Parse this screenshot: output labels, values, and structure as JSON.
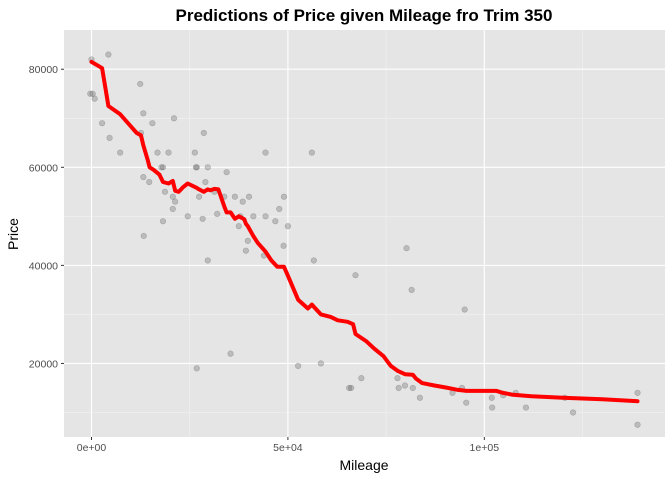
{
  "chart_data": {
    "type": "scatter",
    "title": "Predictions of Price given Mileage fro Trim 350",
    "xlabel": "Mileage",
    "ylabel": "Price",
    "xlim": [
      -7000,
      146000
    ],
    "ylim": [
      5000,
      88000
    ],
    "x_ticks": [
      {
        "value": 0,
        "label": "0e+00"
      },
      {
        "value": 50000,
        "label": "5e+04"
      },
      {
        "value": 100000,
        "label": "1e+05"
      }
    ],
    "y_ticks": [
      {
        "value": 20000,
        "label": "20000"
      },
      {
        "value": 40000,
        "label": "40000"
      },
      {
        "value": 60000,
        "label": "60000"
      },
      {
        "value": 80000,
        "label": "80000"
      }
    ],
    "grid": true,
    "background": "#e5e5e5",
    "colors": {
      "points": "#595959",
      "line": "#ff0000",
      "grid_major": "#ffffff",
      "grid_minor": "#f2f2f2"
    },
    "series": [
      {
        "type": "scatter",
        "points": [
          [
            0,
            82000
          ],
          [
            -300,
            75000
          ],
          [
            300,
            75000
          ],
          [
            800,
            74000
          ],
          [
            2700,
            69000
          ],
          [
            4300,
            83000
          ],
          [
            4600,
            66000
          ],
          [
            7300,
            63000
          ],
          [
            12400,
            77000
          ],
          [
            12600,
            67000
          ],
          [
            13200,
            71000
          ],
          [
            13200,
            58000
          ],
          [
            13300,
            46000
          ],
          [
            14700,
            57000
          ],
          [
            15500,
            69000
          ],
          [
            16800,
            63000
          ],
          [
            17800,
            60000
          ],
          [
            18200,
            60000
          ],
          [
            18200,
            49000
          ],
          [
            18700,
            55000
          ],
          [
            19600,
            63000
          ],
          [
            20700,
            51500
          ],
          [
            20700,
            54000
          ],
          [
            21000,
            70000
          ],
          [
            21300,
            53000
          ],
          [
            24500,
            50000
          ],
          [
            26300,
            63000
          ],
          [
            26600,
            60000
          ],
          [
            26800,
            60000
          ],
          [
            26800,
            19000
          ],
          [
            27400,
            54000
          ],
          [
            28300,
            49500
          ],
          [
            28600,
            67000
          ],
          [
            29000,
            57000
          ],
          [
            29600,
            60000
          ],
          [
            29600,
            41000
          ],
          [
            31300,
            55000
          ],
          [
            32000,
            50500
          ],
          [
            33800,
            54000
          ],
          [
            34400,
            59000
          ],
          [
            35400,
            22000
          ],
          [
            36500,
            54000
          ],
          [
            37500,
            48000
          ],
          [
            37900,
            50000
          ],
          [
            38500,
            53000
          ],
          [
            39300,
            43000
          ],
          [
            39800,
            45000
          ],
          [
            40100,
            54000
          ],
          [
            41200,
            50000
          ],
          [
            43900,
            42000
          ],
          [
            44300,
            63000
          ],
          [
            44300,
            50000
          ],
          [
            46800,
            49000
          ],
          [
            47800,
            51500
          ],
          [
            48900,
            44000
          ],
          [
            49000,
            54000
          ],
          [
            50000,
            48000
          ],
          [
            52600,
            19500
          ],
          [
            56100,
            63000
          ],
          [
            56600,
            41000
          ],
          [
            58400,
            20000
          ],
          [
            65600,
            15000
          ],
          [
            66100,
            15000
          ],
          [
            67200,
            38000
          ],
          [
            68700,
            17000
          ],
          [
            77900,
            17000
          ],
          [
            78200,
            15000
          ],
          [
            79800,
            15500
          ],
          [
            80200,
            43500
          ],
          [
            81500,
            35000
          ],
          [
            81800,
            15000
          ],
          [
            83600,
            13000
          ],
          [
            91900,
            14000
          ],
          [
            94300,
            15000
          ],
          [
            95000,
            31000
          ],
          [
            95400,
            12000
          ],
          [
            101900,
            13000
          ],
          [
            102000,
            11000
          ],
          [
            104800,
            13500
          ],
          [
            108000,
            14000
          ],
          [
            110600,
            11000
          ],
          [
            120500,
            13000
          ],
          [
            122600,
            10000
          ],
          [
            139000,
            14000
          ],
          [
            139000,
            7500
          ]
        ]
      },
      {
        "type": "line",
        "points": [
          [
            0,
            81500
          ],
          [
            1700,
            80700
          ],
          [
            2700,
            80200
          ],
          [
            4300,
            72500
          ],
          [
            7300,
            70800
          ],
          [
            11500,
            67000
          ],
          [
            12600,
            66500
          ],
          [
            13200,
            64500
          ],
          [
            14300,
            61500
          ],
          [
            14800,
            60000
          ],
          [
            15800,
            59500
          ],
          [
            17300,
            58500
          ],
          [
            18200,
            57000
          ],
          [
            19600,
            56700
          ],
          [
            20700,
            57200
          ],
          [
            21300,
            55200
          ],
          [
            22200,
            55000
          ],
          [
            23400,
            56000
          ],
          [
            24500,
            56700
          ],
          [
            26300,
            56000
          ],
          [
            26800,
            55800
          ],
          [
            27400,
            55500
          ],
          [
            28600,
            55000
          ],
          [
            29600,
            55500
          ],
          [
            30300,
            55300
          ],
          [
            31300,
            55600
          ],
          [
            32300,
            55500
          ],
          [
            33800,
            52000
          ],
          [
            34400,
            50800
          ],
          [
            35400,
            50800
          ],
          [
            36500,
            49500
          ],
          [
            37500,
            50000
          ],
          [
            38900,
            49400
          ],
          [
            39300,
            48500
          ],
          [
            39800,
            48000
          ],
          [
            41200,
            46000
          ],
          [
            42300,
            44600
          ],
          [
            44300,
            42800
          ],
          [
            45800,
            41000
          ],
          [
            47300,
            39700
          ],
          [
            49000,
            39700
          ],
          [
            50200,
            37500
          ],
          [
            52600,
            33000
          ],
          [
            55100,
            31200
          ],
          [
            56100,
            32000
          ],
          [
            57000,
            31200
          ],
          [
            58400,
            30000
          ],
          [
            60900,
            29500
          ],
          [
            62700,
            28800
          ],
          [
            65200,
            28500
          ],
          [
            65700,
            28300
          ],
          [
            66600,
            28000
          ],
          [
            67200,
            26000
          ],
          [
            70000,
            24500
          ],
          [
            72000,
            23000
          ],
          [
            74300,
            21500
          ],
          [
            76200,
            19500
          ],
          [
            77900,
            18500
          ],
          [
            79800,
            17800
          ],
          [
            81800,
            17700
          ],
          [
            82600,
            16900
          ],
          [
            84200,
            16000
          ],
          [
            87300,
            15500
          ],
          [
            90200,
            15100
          ],
          [
            93300,
            14600
          ],
          [
            95500,
            14400
          ],
          [
            98000,
            14400
          ],
          [
            103100,
            14400
          ],
          [
            104800,
            14000
          ],
          [
            107300,
            13600
          ],
          [
            112000,
            13300
          ],
          [
            120000,
            13000
          ],
          [
            130000,
            12700
          ],
          [
            139000,
            12300
          ]
        ]
      }
    ]
  }
}
